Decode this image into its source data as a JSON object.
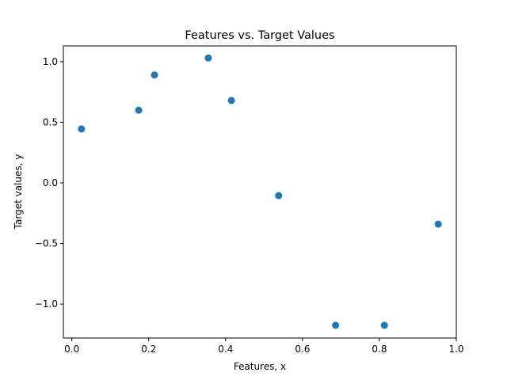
{
  "chart_data": {
    "type": "scatter",
    "title": "Features vs. Target Values",
    "xlabel": "Features, x",
    "ylabel": "Target values, y",
    "xlim": [
      -0.022,
      1.0
    ],
    "ylim": [
      -1.28,
      1.13
    ],
    "xticks": [
      0.0,
      0.2,
      0.4,
      0.6,
      0.8,
      1.0
    ],
    "xtick_labels": [
      "0.0",
      "0.2",
      "0.4",
      "0.6",
      "0.8",
      "1.0"
    ],
    "yticks": [
      -1.0,
      -0.5,
      0.0,
      0.5,
      1.0
    ],
    "ytick_labels": [
      "−1.0",
      "−0.5",
      "0.0",
      "0.5",
      "1.0"
    ],
    "grid": false,
    "color": "#1f77b4",
    "points": [
      {
        "x": 0.025,
        "y": 0.445
      },
      {
        "x": 0.174,
        "y": 0.6
      },
      {
        "x": 0.215,
        "y": 0.89
      },
      {
        "x": 0.355,
        "y": 1.03
      },
      {
        "x": 0.415,
        "y": 0.68
      },
      {
        "x": 0.538,
        "y": -0.105
      },
      {
        "x": 0.686,
        "y": -1.175
      },
      {
        "x": 0.813,
        "y": -1.175
      },
      {
        "x": 0.953,
        "y": -0.34
      }
    ]
  }
}
